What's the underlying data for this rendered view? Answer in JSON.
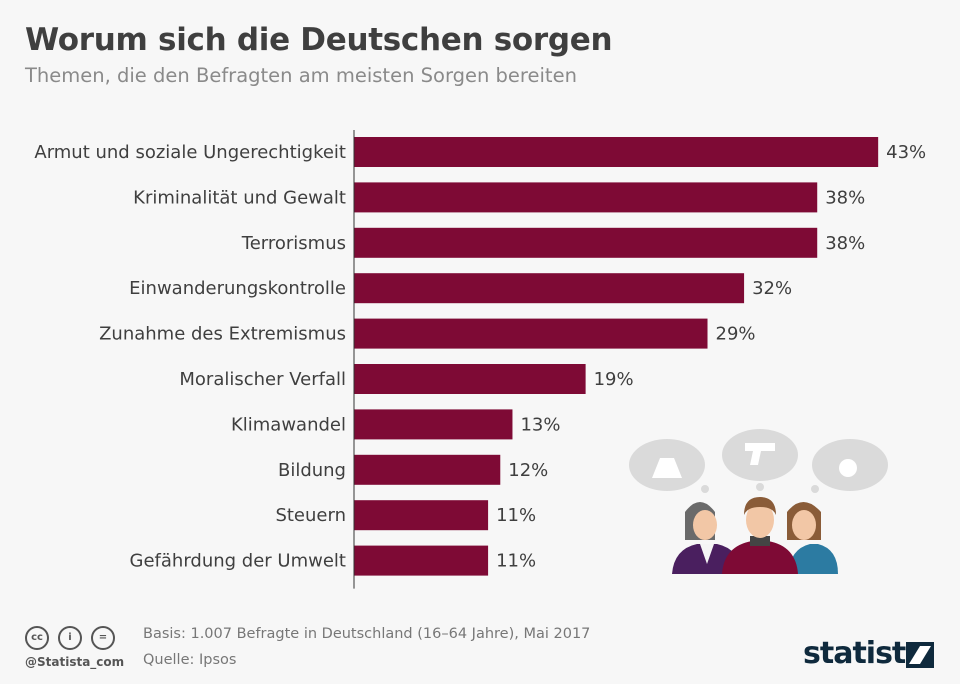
{
  "title": "Worum sich die Deutschen sorgen",
  "subtitle": "Themen, die den Befragten am meisten Sorgen bereiten",
  "chart_data": {
    "type": "bar",
    "orientation": "horizontal",
    "categories": [
      "Armut und soziale Ungerechtigkeit",
      "Kriminalität und Gewalt",
      "Terrorismus",
      "Einwanderungskontrolle",
      "Zunahme des Extremismus",
      "Moralischer Verfall",
      "Klimawandel",
      "Bildung",
      "Steuern",
      "Gefährdung der Umwelt"
    ],
    "values": [
      43,
      38,
      38,
      32,
      29,
      19,
      13,
      12,
      11,
      11
    ],
    "value_labels": [
      "43%",
      "38%",
      "38%",
      "32%",
      "29%",
      "19%",
      "13%",
      "12%",
      "11%",
      "11%"
    ],
    "unit": "%",
    "bar_color": "#7e0a35",
    "grid": false
  },
  "footer": {
    "basis": "Basis: 1.007 Befragte in Deutschland (16–64 Jahre), Mai 2017",
    "source": "Quelle: Ipsos",
    "handle": "@Statista_com",
    "logo": "statista",
    "license_icons": [
      "cc",
      "by",
      "nd"
    ]
  }
}
